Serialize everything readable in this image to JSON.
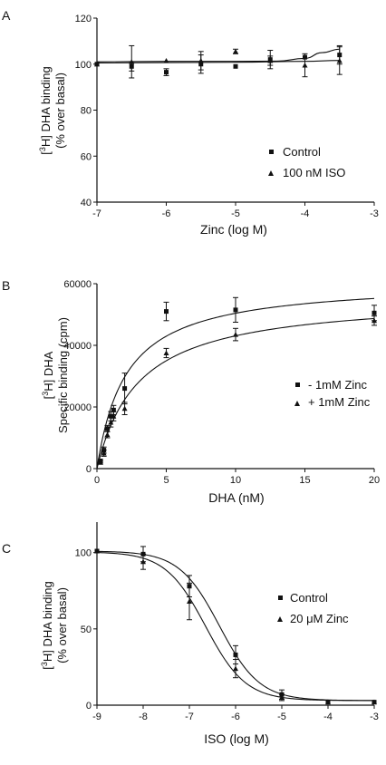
{
  "panels": [
    {
      "letter": "A",
      "chart_data": {
        "type": "scatter",
        "title": "",
        "xlabel": "Zinc (log M)",
        "ylabel": "[3H] DHA binding",
        "ylabel_sub": "(% over basal)",
        "xlim": [
          -7,
          -3
        ],
        "ylim": [
          40,
          120
        ],
        "x_ticks": [
          -7,
          -6,
          -5,
          -4,
          -3
        ],
        "y_ticks": [
          40,
          60,
          80,
          100,
          120
        ],
        "legend_position": "center-right",
        "series": [
          {
            "name": "Control",
            "marker": "square",
            "points": [
              {
                "x": -7,
                "y": 100,
                "err": 0
              },
              {
                "x": -6.5,
                "y": 99,
                "err": 2
              },
              {
                "x": -6,
                "y": 96.5,
                "err": 1.5
              },
              {
                "x": -5.5,
                "y": 100,
                "err": 4
              },
              {
                "x": -5,
                "y": 99,
                "err": 0
              },
              {
                "x": -4.5,
                "y": 102,
                "err": 4
              },
              {
                "x": -4,
                "y": 103,
                "err": 0
              },
              {
                "x": -3.5,
                "y": 104,
                "err": 4
              }
            ],
            "fit": [
              [
                -7,
                100.5
              ],
              [
                -5,
                100.8
              ],
              [
                -4,
                101.2
              ],
              [
                -3.5,
                101.6
              ]
            ]
          },
          {
            "name": "100 nM ISO",
            "marker": "triangle",
            "points": [
              {
                "x": -7,
                "y": 100,
                "err": 0
              },
              {
                "x": -6.5,
                "y": 101,
                "err": 7
              },
              {
                "x": -6,
                "y": 101.5,
                "err": 0
              },
              {
                "x": -5.5,
                "y": 101.5,
                "err": 4
              },
              {
                "x": -5,
                "y": 105.5,
                "err": 1
              },
              {
                "x": -4.5,
                "y": 101.5,
                "err": 2
              },
              {
                "x": -4,
                "y": 99.5,
                "err": 5
              },
              {
                "x": -3.5,
                "y": 101.5,
                "err": 6
              }
            ],
            "fit": [
              [
                -7,
                101
              ],
              [
                -6,
                101.2
              ],
              [
                -5,
                101.2
              ],
              [
                -4.4,
                101.3
              ],
              [
                -4,
                102.5
              ],
              [
                -3.75,
                105
              ],
              [
                -3.5,
                106.5
              ]
            ]
          }
        ]
      }
    },
    {
      "letter": "B",
      "chart_data": {
        "type": "scatter",
        "title": "",
        "xlabel": "DHA (nM)",
        "ylabel": "[3H] DHA",
        "ylabel_sub": "Specific binding  (cpm)",
        "xlim": [
          0,
          20
        ],
        "ylim": [
          0,
          60000
        ],
        "x_ticks": [
          0,
          5,
          10,
          15,
          20
        ],
        "y_ticks": [
          0,
          20000,
          40000,
          60000
        ],
        "legend_position": "center-right",
        "series": [
          {
            "name": "- 1mM Zinc",
            "marker": "square",
            "points": [
              {
                "x": 0.25,
                "y": 2500,
                "err": 500
              },
              {
                "x": 0.5,
                "y": 6000,
                "err": 1000
              },
              {
                "x": 0.75,
                "y": 13000,
                "err": 1000
              },
              {
                "x": 1,
                "y": 17000,
                "err": 1500
              },
              {
                "x": 1.2,
                "y": 19000,
                "err": 1500
              },
              {
                "x": 2,
                "y": 26000,
                "err": 5000
              },
              {
                "x": 5,
                "y": 51000,
                "err": 3000
              },
              {
                "x": 10,
                "y": 51500,
                "err": 4000
              },
              {
                "x": 20,
                "y": 50500,
                "err": 2500
              }
            ],
            "fit_model": {
              "bmax": 61000,
              "kd": 2.1
            }
          },
          {
            "name": "+ 1mM Zinc",
            "marker": "triangle",
            "points": [
              {
                "x": 0.25,
                "y": 2000,
                "err": 500
              },
              {
                "x": 0.5,
                "y": 5000,
                "err": 1000
              },
              {
                "x": 0.75,
                "y": 11000,
                "err": 1000
              },
              {
                "x": 1,
                "y": 15000,
                "err": 1500
              },
              {
                "x": 1.2,
                "y": 17000,
                "err": 1500
              },
              {
                "x": 2,
                "y": 19500,
                "err": 2000
              },
              {
                "x": 5,
                "y": 37500,
                "err": 1500
              },
              {
                "x": 10,
                "y": 43500,
                "err": 2000
              },
              {
                "x": 20,
                "y": 48000,
                "err": 1500
              }
            ],
            "fit_model": {
              "bmax": 56000,
              "kd": 3.0
            }
          }
        ]
      }
    },
    {
      "letter": "C",
      "chart_data": {
        "type": "scatter",
        "title": "",
        "xlabel": "ISO (log M)",
        "ylabel": "[3H] DHA binding",
        "ylabel_sub": "(% over basal)",
        "xlim": [
          -9,
          -3
        ],
        "ylim": [
          0,
          120
        ],
        "x_ticks": [
          -9,
          -8,
          -7,
          -6,
          -5,
          -4,
          -3
        ],
        "y_ticks": [
          0,
          50,
          100
        ],
        "legend_position": "center-right",
        "series": [
          {
            "name": "Control",
            "marker": "square",
            "points": [
              {
                "x": -9,
                "y": 101,
                "err": 0
              },
              {
                "x": -8,
                "y": 99,
                "err": 5
              },
              {
                "x": -7,
                "y": 78,
                "err": 7
              },
              {
                "x": -6,
                "y": 33,
                "err": 6
              },
              {
                "x": -5,
                "y": 7,
                "err": 3
              },
              {
                "x": -4,
                "y": 2,
                "err": 0
              },
              {
                "x": -3,
                "y": 2,
                "err": 0
              }
            ],
            "fit_model": {
              "top": 101,
              "bottom": 3,
              "logec50": -6.35,
              "hill": 1.0
            }
          },
          {
            "name": "20 μM Zinc",
            "marker": "triangle",
            "points": [
              {
                "x": -9,
                "y": 101,
                "err": 0
              },
              {
                "x": -8,
                "y": 94,
                "err": 5
              },
              {
                "x": -7,
                "y": 68,
                "err": 12
              },
              {
                "x": -6,
                "y": 24,
                "err": 6
              },
              {
                "x": -5,
                "y": 5,
                "err": 2
              },
              {
                "x": -4,
                "y": 2,
                "err": 0
              },
              {
                "x": -3,
                "y": 2,
                "err": 0
              }
            ],
            "fit_model": {
              "top": 100.5,
              "bottom": 3,
              "logec50": -6.65,
              "hill": 1.0
            }
          }
        ]
      }
    }
  ]
}
